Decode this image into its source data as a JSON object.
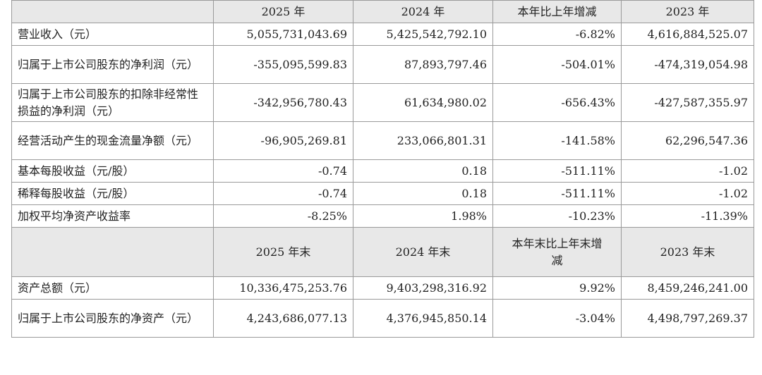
{
  "header1": {
    "col1": "2025 年",
    "col2": "2024 年",
    "col3": "本年比上年增减",
    "col4": "2023 年"
  },
  "header2": {
    "col1": "2025 年末",
    "col2": "2024 年末",
    "col3": "本年末比上年末增减",
    "col4": "2023 年末"
  },
  "rows": [
    {
      "label": "营业收入（元）",
      "v2025": "5,055,731,043.69",
      "v2024": "5,425,542,792.10",
      "change": "-6.82%",
      "v2023": "4,616,884,525.07"
    },
    {
      "label": "归属于上市公司股东的净利润（元）",
      "v2025": "-355,095,599.83",
      "v2024": "87,893,797.46",
      "change": "-504.01%",
      "v2023": "-474,319,054.98"
    },
    {
      "label": "归属于上市公司股东的扣除非经常性损益的净利润（元）",
      "v2025": "-342,956,780.43",
      "v2024": "61,634,980.02",
      "change": "-656.43%",
      "v2023": "-427,587,355.97"
    },
    {
      "label": "经营活动产生的现金流量净额（元）",
      "v2025": "-96,905,269.81",
      "v2024": "233,066,801.31",
      "change": "-141.58%",
      "v2023": "62,296,547.36"
    },
    {
      "label": "基本每股收益（元/股）",
      "v2025": "-0.74",
      "v2024": "0.18",
      "change": "-511.11%",
      "v2023": "-1.02"
    },
    {
      "label": "稀释每股收益（元/股）",
      "v2025": "-0.74",
      "v2024": "0.18",
      "change": "-511.11%",
      "v2023": "-1.02"
    },
    {
      "label": "加权平均净资产收益率",
      "v2025": "-8.25%",
      "v2024": "1.98%",
      "change": "-10.23%",
      "v2023": "-11.39%"
    }
  ],
  "rows2": [
    {
      "label": "资产总额（元）",
      "v2025": "10,336,475,253.76",
      "v2024": "9,403,298,316.92",
      "change": "9.92%",
      "v2023": "8,459,246,241.00"
    },
    {
      "label": "归属于上市公司股东的净资产（元）",
      "v2025": "4,243,686,077.13",
      "v2024": "4,376,945,850.14",
      "change": "-3.04%",
      "v2023": "4,498,797,269.37"
    }
  ]
}
